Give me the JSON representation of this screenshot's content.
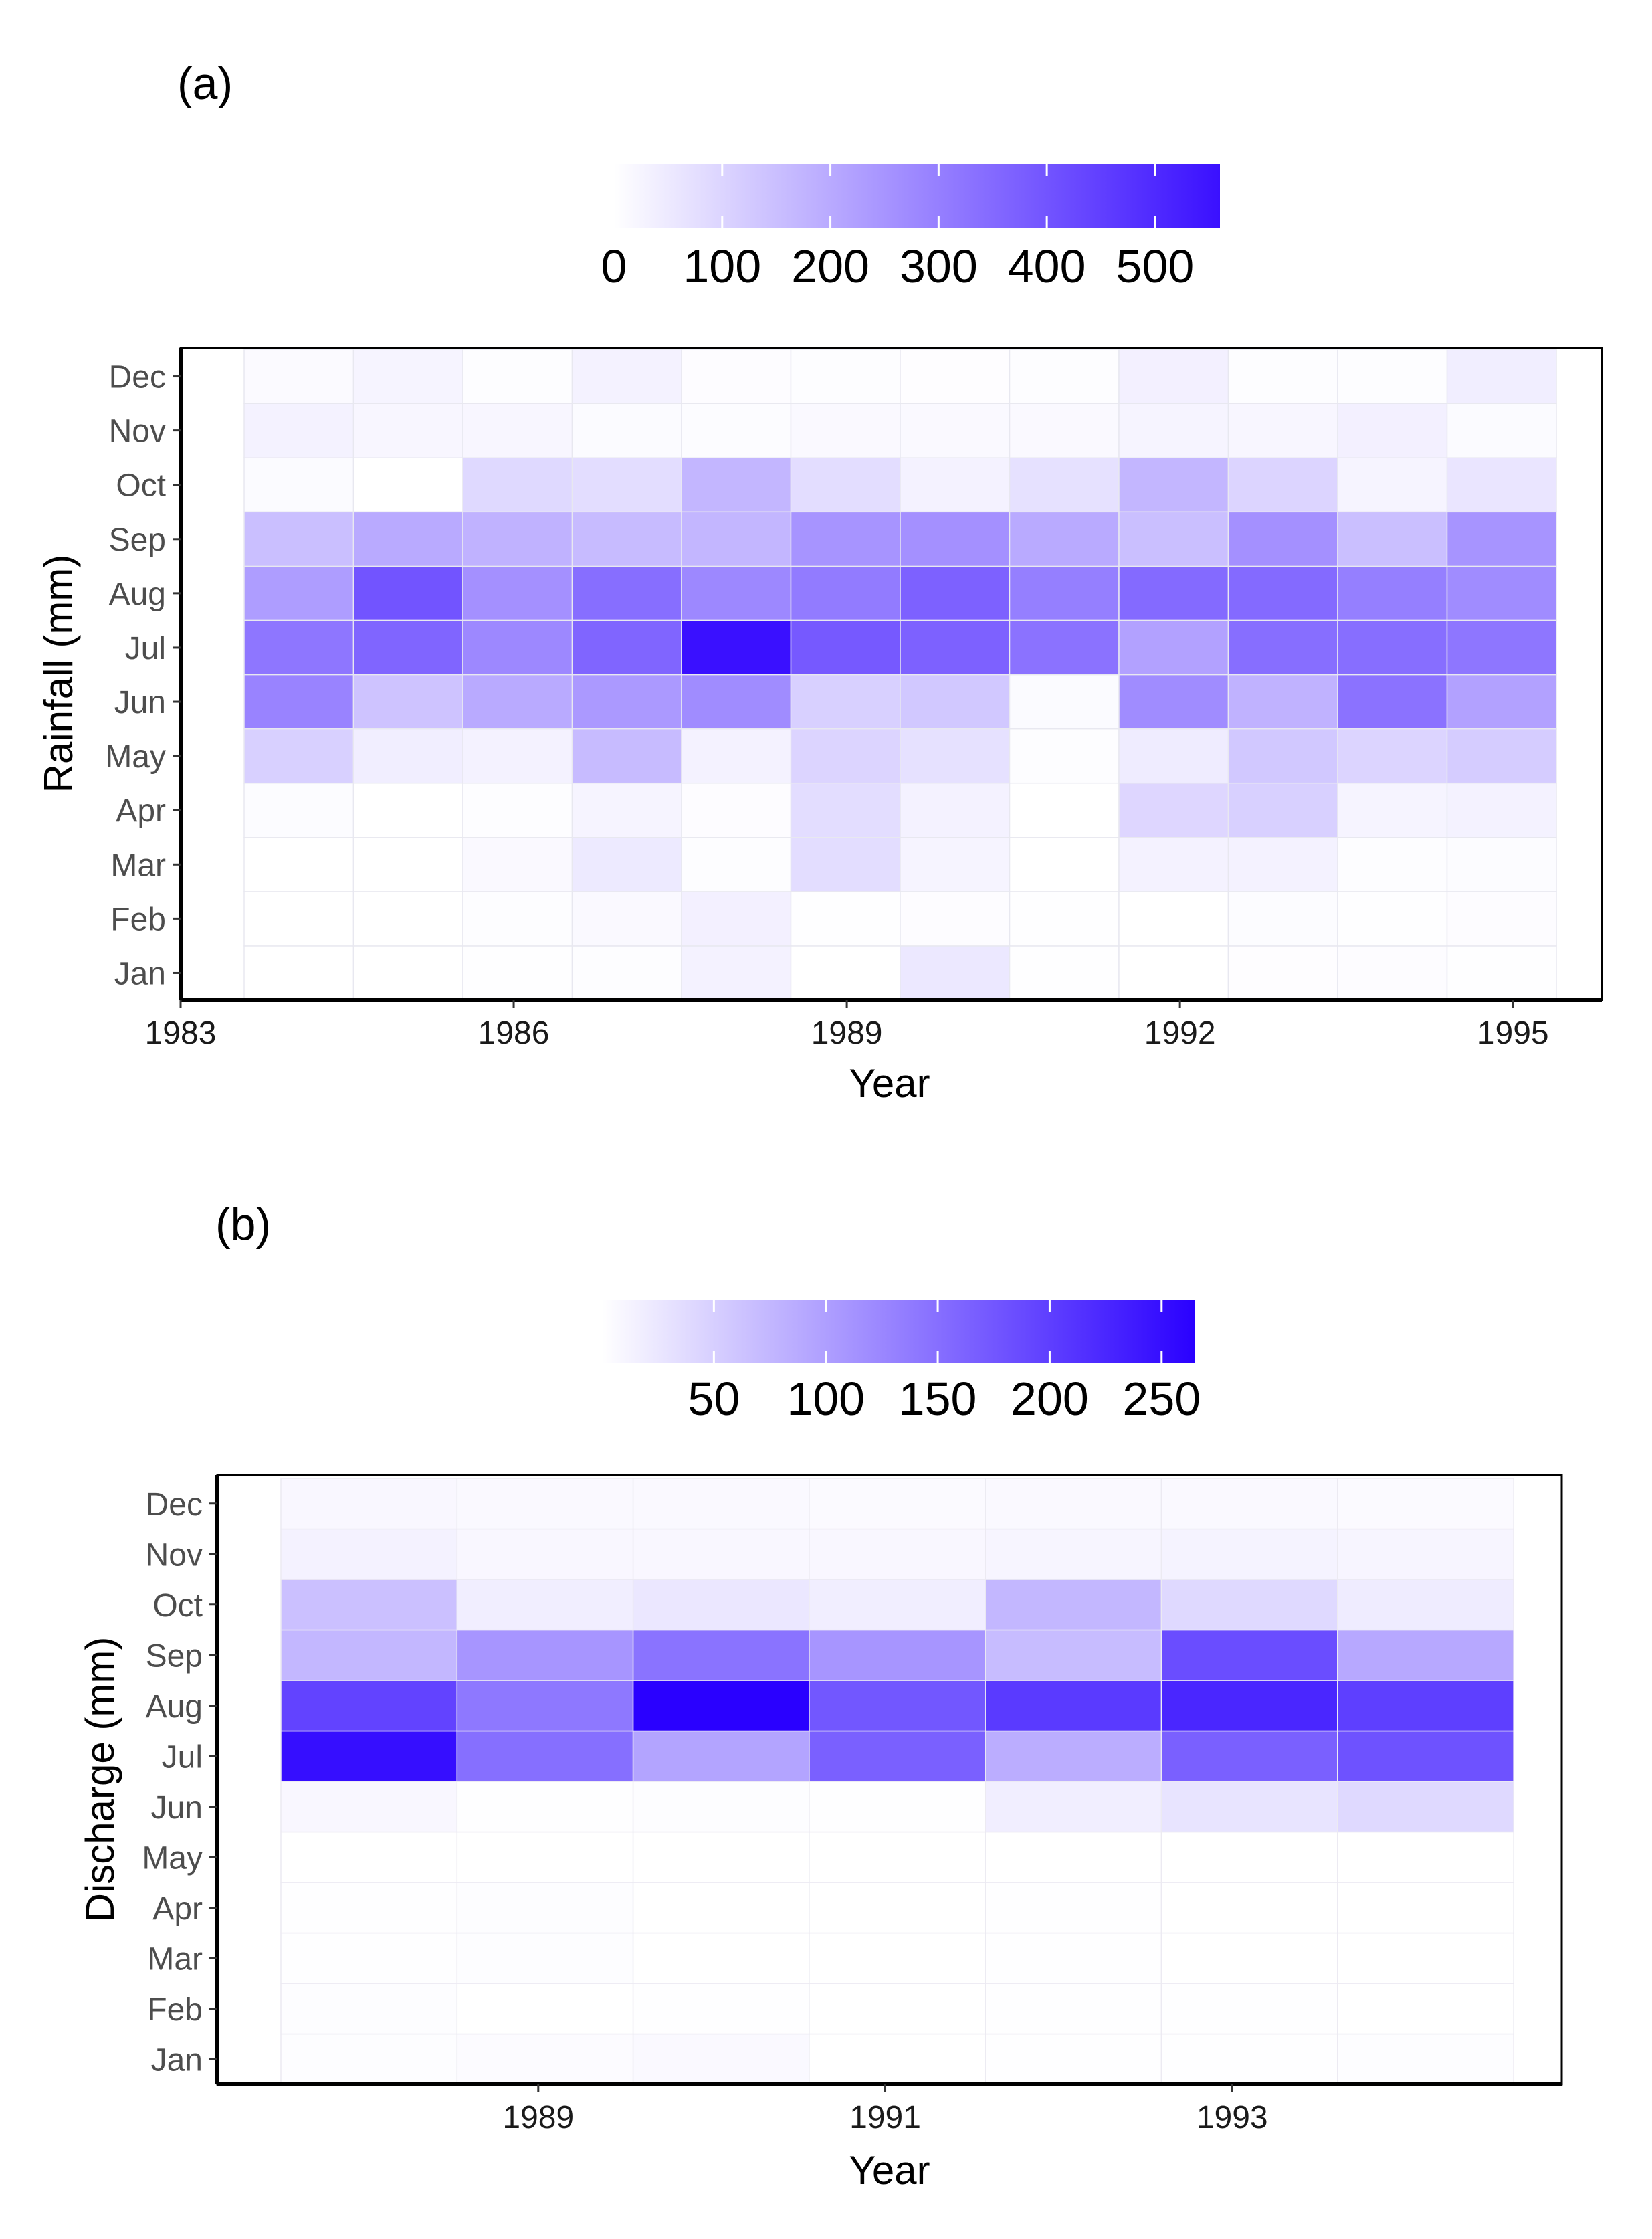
{
  "chart_data": [
    {
      "panel_label": "(a)",
      "type": "heatmap",
      "xlabel": "Year",
      "ylabel": "Rainfall (mm)",
      "x_ticks": [
        "1983",
        "1986",
        "1989",
        "1992",
        "1995"
      ],
      "x_tick_values": [
        1983,
        1986,
        1989,
        1992,
        1995
      ],
      "x_range": [
        1983,
        1995.8
      ],
      "years": [
        1984,
        1985,
        1986,
        1987,
        1988,
        1989,
        1990,
        1991,
        1992,
        1993,
        1994,
        1995
      ],
      "months": [
        "Jan",
        "Feb",
        "Mar",
        "Apr",
        "May",
        "Jun",
        "Jul",
        "Aug",
        "Sep",
        "Oct",
        "Nov",
        "Dec"
      ],
      "legend": {
        "labels": [
          "0",
          "100",
          "200",
          "300",
          "400",
          "500"
        ],
        "ticks": [
          0,
          100,
          200,
          300,
          400,
          500
        ],
        "min": 0,
        "max": 560
      },
      "values": [
        [
          0,
          0,
          2,
          5,
          30,
          0,
          55,
          3,
          0,
          4,
          6,
          3
        ],
        [
          0,
          0,
          5,
          15,
          35,
          2,
          6,
          3,
          0,
          8,
          2,
          6
        ],
        [
          0,
          0,
          15,
          50,
          5,
          80,
          25,
          0,
          30,
          30,
          5,
          8
        ],
        [
          8,
          0,
          5,
          25,
          6,
          80,
          30,
          0,
          95,
          110,
          25,
          30
        ],
        [
          110,
          40,
          30,
          160,
          30,
          100,
          70,
          5,
          45,
          130,
          100,
          120
        ],
        [
          290,
          140,
          200,
          240,
          270,
          110,
          130,
          10,
          270,
          180,
          330,
          220
        ],
        [
          320,
          360,
          280,
          360,
          560,
          390,
          370,
          330,
          220,
          340,
          340,
          320
        ],
        [
          230,
          400,
          260,
          340,
          280,
          310,
          370,
          300,
          350,
          350,
          300,
          270
        ],
        [
          150,
          200,
          180,
          160,
          170,
          250,
          260,
          200,
          150,
          260,
          150,
          250
        ],
        [
          10,
          0,
          90,
          80,
          170,
          80,
          30,
          70,
          170,
          100,
          25,
          60
        ],
        [
          30,
          20,
          20,
          10,
          8,
          15,
          15,
          15,
          25,
          20,
          35,
          10
        ],
        [
          12,
          25,
          5,
          30,
          6,
          5,
          4,
          5,
          35,
          5,
          5,
          40
        ]
      ]
    },
    {
      "panel_label": "(b)",
      "type": "heatmap",
      "xlabel": "Year",
      "ylabel": "Discharge (mm)",
      "x_ticks": [
        "1989",
        "1991",
        "1993"
      ],
      "x_tick_values": [
        1989,
        1991,
        1993
      ],
      "x_range": [
        1987.15,
        1994.9
      ],
      "years": [
        1988,
        1989,
        1990,
        1991,
        1992,
        1993,
        1994
      ],
      "months": [
        "Jan",
        "Feb",
        "Mar",
        "Apr",
        "May",
        "Jun",
        "Jul",
        "Aug",
        "Sep",
        "Oct",
        "Nov",
        "Dec"
      ],
      "legend": {
        "labels": [
          "50",
          "100",
          "150",
          "200",
          "250"
        ],
        "ticks": [
          50,
          100,
          150,
          200,
          250
        ],
        "min": 0,
        "max": 265
      },
      "values": [
        [
          2,
          4,
          6,
          0,
          1,
          1,
          2
        ],
        [
          2,
          0,
          1,
          0,
          1,
          1,
          0
        ],
        [
          1,
          2,
          0,
          0,
          1,
          0,
          0
        ],
        [
          1,
          2,
          0,
          0,
          1,
          0,
          0
        ],
        [
          0,
          0,
          0,
          0,
          0,
          0,
          0
        ],
        [
          8,
          1,
          2,
          1,
          18,
          28,
          40
        ],
        [
          250,
          150,
          95,
          165,
          85,
          165,
          180
        ],
        [
          195,
          140,
          265,
          175,
          205,
          225,
          200
        ],
        [
          75,
          110,
          145,
          110,
          70,
          185,
          90
        ],
        [
          65,
          18,
          25,
          18,
          75,
          40,
          20
        ],
        [
          14,
          8,
          8,
          8,
          10,
          12,
          10
        ],
        [
          8,
          6,
          6,
          5,
          6,
          6,
          5
        ]
      ]
    }
  ]
}
